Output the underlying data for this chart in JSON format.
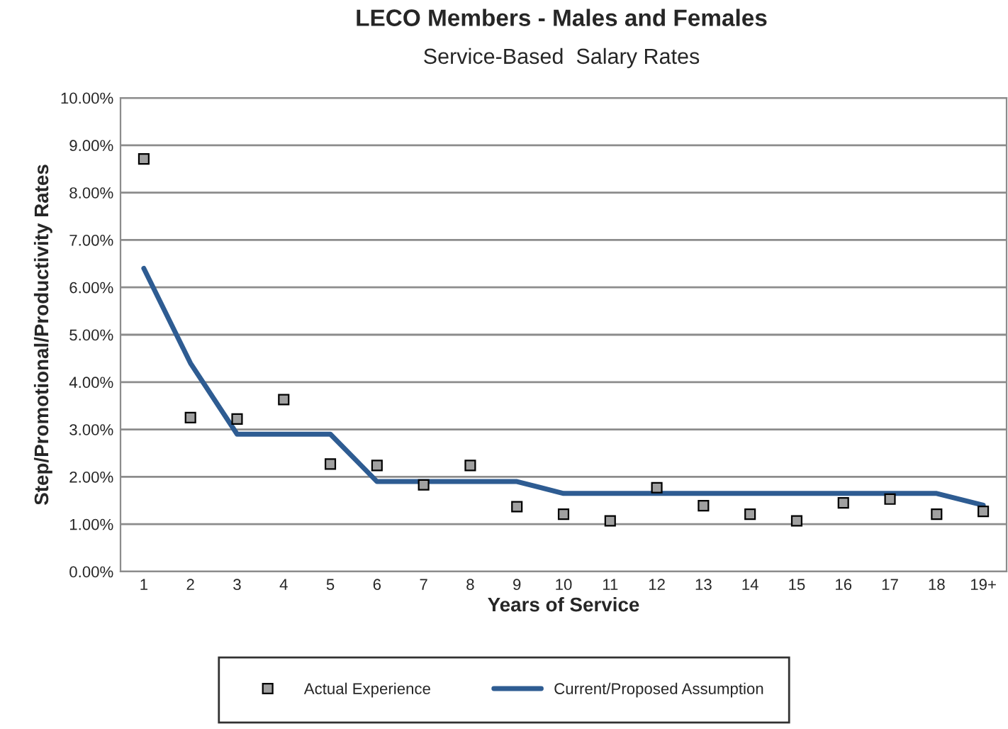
{
  "chart_data": {
    "type": "line",
    "title": "LECO Members - Males and Females",
    "subtitle": "Service-Based  Salary Rates",
    "xlabel": "Years of Service",
    "ylabel": "Step/Promotional/Productivity Rates",
    "categories": [
      "1",
      "2",
      "3",
      "4",
      "5",
      "6",
      "7",
      "8",
      "9",
      "10",
      "11",
      "12",
      "13",
      "14",
      "15",
      "16",
      "17",
      "18",
      "19+"
    ],
    "series": [
      {
        "name": "Actual Experience",
        "type": "scatter",
        "marker": "square",
        "color": "#a0a0a0",
        "values": [
          8.71,
          3.25,
          3.22,
          3.63,
          2.27,
          2.24,
          1.83,
          2.24,
          1.37,
          1.21,
          1.07,
          1.77,
          1.39,
          1.21,
          1.07,
          1.45,
          1.53,
          1.21,
          1.27
        ]
      },
      {
        "name": "Current/Proposed Assumption",
        "color": "#2e5c92",
        "values": [
          6.4,
          4.4,
          2.9,
          2.9,
          2.9,
          1.9,
          1.9,
          1.9,
          1.9,
          1.65,
          1.65,
          1.65,
          1.65,
          1.65,
          1.65,
          1.65,
          1.65,
          1.65,
          1.4
        ]
      }
    ],
    "ylim": [
      0,
      10
    ],
    "yticks": [
      {
        "value": 0,
        "label": "0.00%"
      },
      {
        "value": 1,
        "label": "1.00%"
      },
      {
        "value": 2,
        "label": "2.00%"
      },
      {
        "value": 3,
        "label": "3.00%"
      },
      {
        "value": 4,
        "label": "4.00%"
      },
      {
        "value": 5,
        "label": "5.00%"
      },
      {
        "value": 6,
        "label": "6.00%"
      },
      {
        "value": 7,
        "label": "7.00%"
      },
      {
        "value": 8,
        "label": "8.00%"
      },
      {
        "value": 9,
        "label": "9.00%"
      },
      {
        "value": 10,
        "label": "10.00%"
      }
    ],
    "grid": "y",
    "legend": "bottom"
  }
}
